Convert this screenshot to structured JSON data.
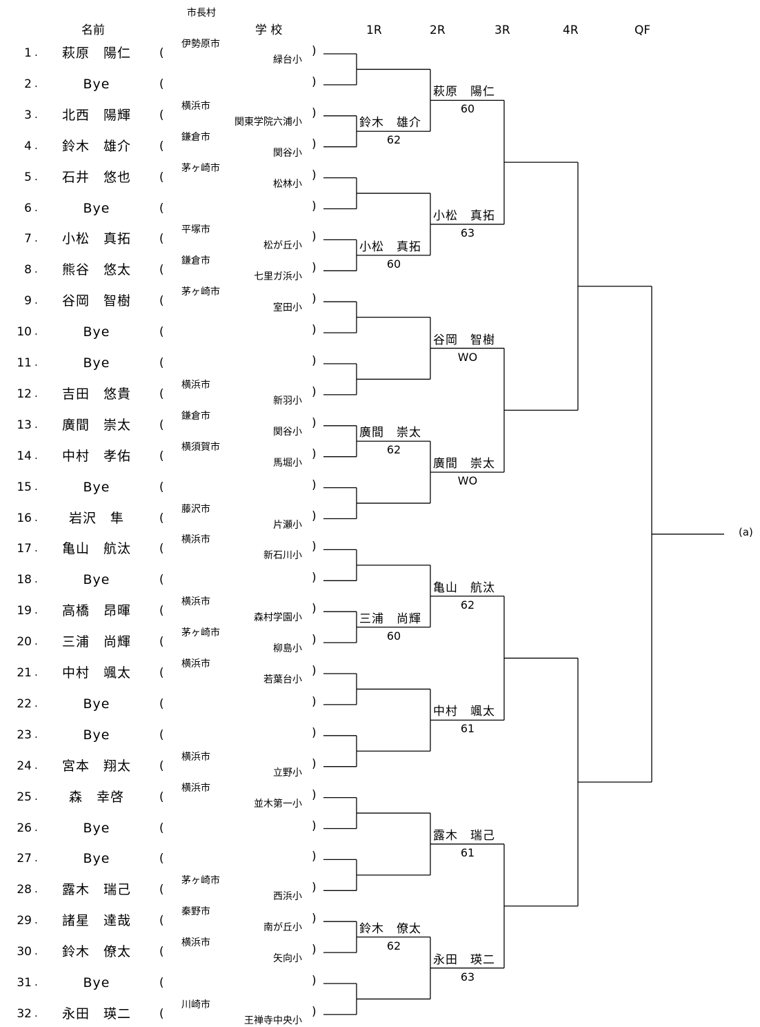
{
  "header": {
    "name_label": "名前",
    "city_label": "市長村",
    "school_label": "学 校",
    "rounds": [
      "1R",
      "2R",
      "3R",
      "4R",
      "QF"
    ]
  },
  "players": [
    {
      "num": "1",
      "name": "萩原　陽仁",
      "city": "伊勢原市",
      "school": "緑台小"
    },
    {
      "num": "2",
      "name": "Bye",
      "city": "",
      "school": ""
    },
    {
      "num": "3",
      "name": "北西　陽輝",
      "city": "横浜市",
      "school": "関東学院六浦小"
    },
    {
      "num": "4",
      "name": "鈴木　雄介",
      "city": "鎌倉市",
      "school": "関谷小"
    },
    {
      "num": "5",
      "name": "石井　悠也",
      "city": "茅ヶ崎市",
      "school": "松林小"
    },
    {
      "num": "6",
      "name": "Bye",
      "city": "",
      "school": ""
    },
    {
      "num": "7",
      "name": "小松　真拓",
      "city": "平塚市",
      "school": "松が丘小"
    },
    {
      "num": "8",
      "name": "熊谷　悠太",
      "city": "鎌倉市",
      "school": "七里ガ浜小"
    },
    {
      "num": "9",
      "name": "谷岡　智樹",
      "city": "茅ヶ崎市",
      "school": "室田小"
    },
    {
      "num": "10",
      "name": "Bye",
      "city": "",
      "school": ""
    },
    {
      "num": "11",
      "name": "Bye",
      "city": "",
      "school": ""
    },
    {
      "num": "12",
      "name": "吉田　悠貴",
      "city": "横浜市",
      "school": "新羽小"
    },
    {
      "num": "13",
      "name": "廣間　崇太",
      "city": "鎌倉市",
      "school": "関谷小"
    },
    {
      "num": "14",
      "name": "中村　孝佑",
      "city": "横須賀市",
      "school": "馬堀小"
    },
    {
      "num": "15",
      "name": "Bye",
      "city": "",
      "school": ""
    },
    {
      "num": "16",
      "name": "岩沢　隼",
      "city": "藤沢市",
      "school": "片瀬小"
    },
    {
      "num": "17",
      "name": "亀山　航汰",
      "city": "横浜市",
      "school": "新石川小"
    },
    {
      "num": "18",
      "name": "Bye",
      "city": "",
      "school": ""
    },
    {
      "num": "19",
      "name": "高橋　昂暉",
      "city": "横浜市",
      "school": "森村学園小"
    },
    {
      "num": "20",
      "name": "三浦　尚輝",
      "city": "茅ヶ崎市",
      "school": "柳島小"
    },
    {
      "num": "21",
      "name": "中村　颯太",
      "city": "横浜市",
      "school": "若葉台小"
    },
    {
      "num": "22",
      "name": "Bye",
      "city": "",
      "school": ""
    },
    {
      "num": "23",
      "name": "Bye",
      "city": "",
      "school": ""
    },
    {
      "num": "24",
      "name": "宮本　翔太",
      "city": "横浜市",
      "school": "立野小"
    },
    {
      "num": "25",
      "name": "森　幸啓",
      "city": "横浜市",
      "school": "並木第一小"
    },
    {
      "num": "26",
      "name": "Bye",
      "city": "",
      "school": ""
    },
    {
      "num": "27",
      "name": "Bye",
      "city": "",
      "school": ""
    },
    {
      "num": "28",
      "name": "露木　瑞己",
      "city": "茅ヶ崎市",
      "school": "西浜小"
    },
    {
      "num": "29",
      "name": "諸星　達哉",
      "city": "秦野市",
      "school": "南が丘小"
    },
    {
      "num": "30",
      "name": "鈴木　僚太",
      "city": "横浜市",
      "school": "矢向小"
    },
    {
      "num": "31",
      "name": "Bye",
      "city": "",
      "school": ""
    },
    {
      "num": "32",
      "name": "永田　瑛二",
      "city": "川崎市",
      "school": "王禅寺中央小"
    }
  ],
  "r1_winners": [
    {
      "match": 2,
      "name": "鈴木　雄介",
      "score": "62"
    },
    {
      "match": 4,
      "name": "小松　真拓",
      "score": "60"
    },
    {
      "match": 7,
      "name": "廣間　崇太",
      "score": "62"
    },
    {
      "match": 10,
      "name": "三浦　尚輝",
      "score": "60"
    },
    {
      "match": 15,
      "name": "鈴木　僚太",
      "score": "62"
    }
  ],
  "r2_winners": [
    {
      "match": 1,
      "name": "萩原　陽仁",
      "score": "60"
    },
    {
      "match": 2,
      "name": "小松　真拓",
      "score": "63"
    },
    {
      "match": 3,
      "name": "谷岡　智樹",
      "score": "WO"
    },
    {
      "match": 4,
      "name": "廣間　崇太",
      "score": "WO"
    },
    {
      "match": 5,
      "name": "亀山　航汰",
      "score": "62"
    },
    {
      "match": 6,
      "name": "中村　颯太",
      "score": "61"
    },
    {
      "match": 7,
      "name": "露木　瑞己",
      "score": "61"
    },
    {
      "match": 8,
      "name": "永田　瑛二",
      "score": "63"
    }
  ],
  "final_label": "(a)"
}
